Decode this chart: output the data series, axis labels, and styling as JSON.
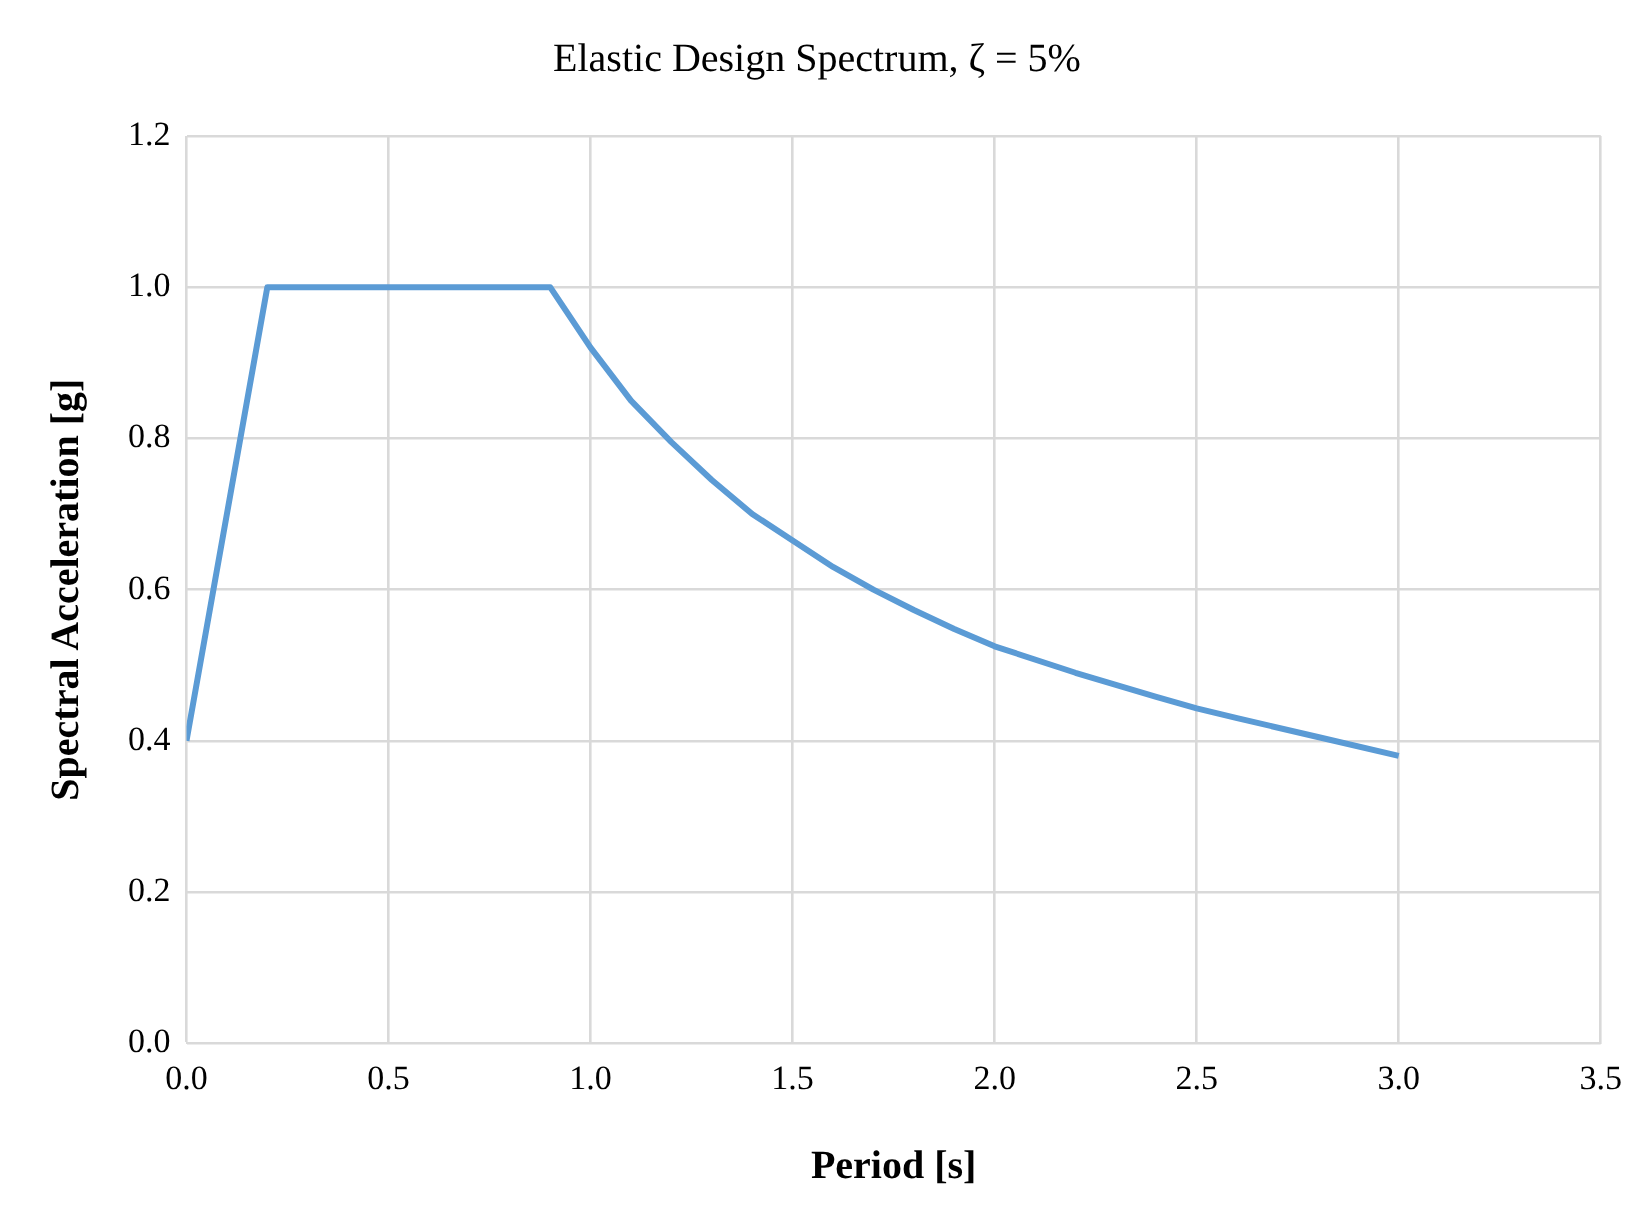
{
  "chart_data": {
    "type": "line",
    "title": "Elastic Design Spectrum, ζ = 5%",
    "xlabel": "Period [s]",
    "ylabel": "Spectral Acceleration [g]",
    "series": [
      {
        "color": "#5b9bd5",
        "x": [
          0,
          0.2,
          0.9,
          1.0,
          1.1,
          1.2,
          1.3,
          1.4,
          1.5,
          1.6,
          1.7,
          1.8,
          1.9,
          2.0,
          2.2,
          2.4,
          2.5,
          2.6,
          2.8,
          3.0
        ],
        "values": [
          0.4,
          1.0,
          1.0,
          0.92,
          0.85,
          0.795,
          0.745,
          0.7,
          0.665,
          0.63,
          0.6,
          0.573,
          0.548,
          0.525,
          0.49,
          0.458,
          0.443,
          0.43,
          0.405,
          0.38
        ]
      }
    ],
    "xlim": [
      0,
      3.5
    ],
    "xticks": [
      {
        "value": 0,
        "label": "0.0"
      },
      {
        "value": 0.5,
        "label": "0.5"
      },
      {
        "value": 1,
        "label": "1.0"
      },
      {
        "value": 1.5,
        "label": "1.5"
      },
      {
        "value": 2,
        "label": "2.0"
      },
      {
        "value": 2.5,
        "label": "2.5"
      },
      {
        "value": 3,
        "label": "3.0"
      },
      {
        "value": 3.5,
        "label": "3.5"
      }
    ],
    "ylim": [
      0,
      1.2
    ],
    "yticks": [
      {
        "value": 0,
        "label": "0.0"
      },
      {
        "value": 0.2,
        "label": "0.2"
      },
      {
        "value": 0.4,
        "label": "0.4"
      },
      {
        "value": 0.6,
        "label": "0.6"
      },
      {
        "value": 0.8,
        "label": "0.8"
      },
      {
        "value": 1,
        "label": "1.0"
      },
      {
        "value": 1.2,
        "label": "1.2"
      }
    ],
    "grid": true,
    "legend": false,
    "marker": "none",
    "line_style": "solid"
  }
}
